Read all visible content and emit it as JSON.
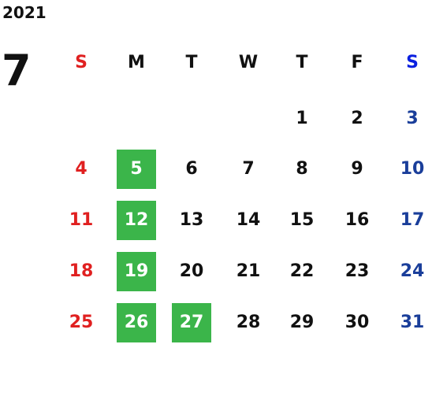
{
  "calendar": {
    "year": "2021",
    "month": "7",
    "weekdays": [
      "S",
      "M",
      "T",
      "W",
      "T",
      "F",
      "S"
    ],
    "weekday_colors": [
      "#e02020",
      "#111111",
      "#111111",
      "#111111",
      "#111111",
      "#111111",
      "#0a20e0"
    ],
    "day_colors": [
      "#e02020",
      "#111111",
      "#111111",
      "#111111",
      "#111111",
      "#111111",
      "#1a3e9a"
    ],
    "highlight_color": "#3bb54a",
    "highlight_text_color": "#ffffff",
    "weeks": [
      [
        null,
        null,
        null,
        null,
        1,
        2,
        3
      ],
      [
        4,
        5,
        6,
        7,
        8,
        9,
        10
      ],
      [
        11,
        12,
        13,
        14,
        15,
        16,
        17
      ],
      [
        18,
        19,
        20,
        21,
        22,
        23,
        24
      ],
      [
        25,
        26,
        27,
        28,
        29,
        30,
        31
      ]
    ],
    "highlighted": [
      [
        false,
        false,
        false,
        false,
        false,
        false,
        false
      ],
      [
        false,
        true,
        false,
        false,
        false,
        false,
        false
      ],
      [
        false,
        true,
        false,
        false,
        false,
        false,
        false
      ],
      [
        false,
        true,
        false,
        false,
        false,
        false,
        false
      ],
      [
        false,
        true,
        true,
        false,
        false,
        false,
        false
      ]
    ]
  }
}
